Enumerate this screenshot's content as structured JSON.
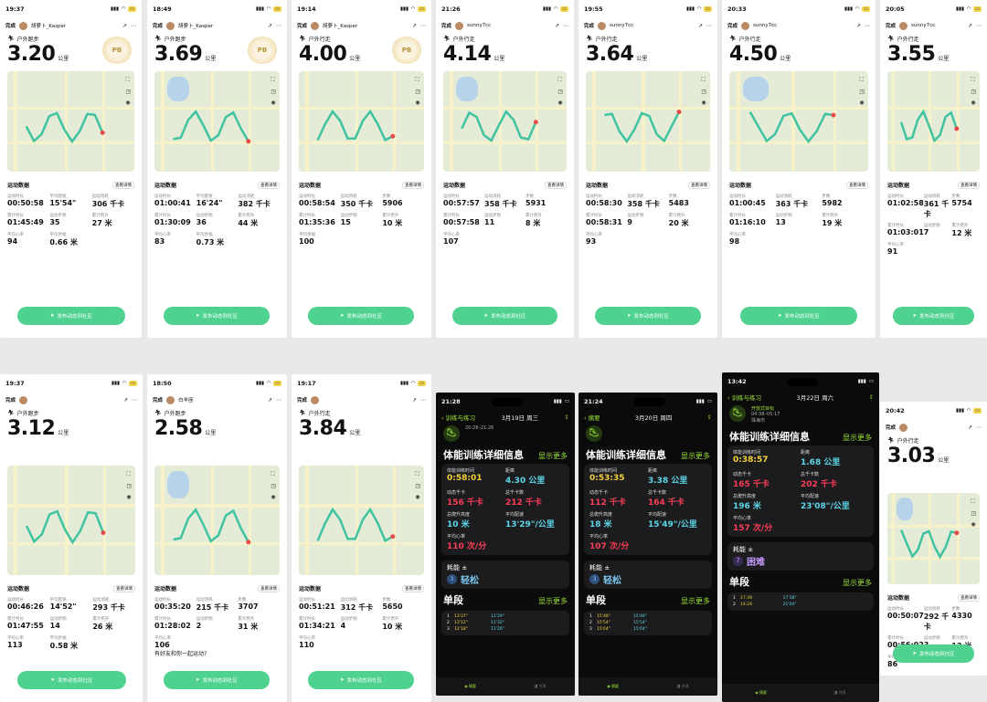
{
  "common": {
    "done_label": "完成",
    "post_label": "发布动态到社区",
    "data_title": "运动数据",
    "detail_label": "查看详情"
  },
  "top": [
    {
      "time": "19:37",
      "type": "户外跑步",
      "user": "胡萝卜_Kasper",
      "dist": "3.20",
      "unit": "公里",
      "badge": "PB",
      "stats": [
        [
          "运动时长",
          "00:50:58"
        ],
        [
          "平均配速",
          "15'54\""
        ],
        [
          "运动消耗",
          "306 千卡"
        ],
        [
          "累计时长",
          "01:45:49"
        ],
        [
          "运动步频",
          "35"
        ],
        [
          "累计爬升",
          "27 米"
        ],
        [
          "平均心率",
          "94"
        ],
        [
          "平均步幅",
          "0.66 米"
        ]
      ]
    },
    {
      "time": "18:49",
      "type": "户外跑步",
      "user": "胡萝卜_Kasper",
      "dist": "3.69",
      "unit": "公里",
      "badge": "PB",
      "stats": [
        [
          "运动时长",
          "01:00:41"
        ],
        [
          "平均配速",
          "16'24\""
        ],
        [
          "运动消耗",
          "382 千卡"
        ],
        [
          "累计时长",
          "01:30:09"
        ],
        [
          "运动步频",
          "36"
        ],
        [
          "累计爬升",
          "44 米"
        ],
        [
          "平均心率",
          "83"
        ],
        [
          "平均步幅",
          "0.73 米"
        ]
      ]
    },
    {
      "time": "19:14",
      "type": "户外行走",
      "user": "胡萝卜_Kasper",
      "dist": "4.00",
      "unit": "公里",
      "badge": "PB",
      "stats": [
        [
          "运动时长",
          "00:58:54"
        ],
        [
          "运动消耗",
          "350 千卡"
        ],
        [
          "步数",
          "5906"
        ],
        [
          "累计时长",
          "01:35:36"
        ],
        [
          "运动步频",
          "15"
        ],
        [
          "累计爬升",
          "10 米"
        ],
        [
          "平均步幅",
          "100"
        ]
      ]
    },
    {
      "time": "21:26",
      "type": "户外行走",
      "user": "sunny7cc",
      "dist": "4.14",
      "unit": "公里",
      "badge": "",
      "stats": [
        [
          "运动时长",
          "00:57:57"
        ],
        [
          "运动消耗",
          "358 千卡"
        ],
        [
          "步数",
          "5931"
        ],
        [
          "累计时长",
          "00:57:58"
        ],
        [
          "运动步频",
          "11"
        ],
        [
          "累计爬升",
          "8 米"
        ],
        [
          "平均心率",
          "107"
        ]
      ]
    },
    {
      "time": "19:55",
      "type": "户外行走",
      "user": "sunny7cc",
      "dist": "3.64",
      "unit": "公里",
      "badge": "",
      "stats": [
        [
          "运动时长",
          "00:58:30"
        ],
        [
          "运动消耗",
          "358 千卡"
        ],
        [
          "步数",
          "5483"
        ],
        [
          "累计时长",
          "00:58:31"
        ],
        [
          "运动步频",
          "9"
        ],
        [
          "累计爬升",
          "20 米"
        ],
        [
          "平均心率",
          "93"
        ]
      ]
    },
    {
      "time": "20:33",
      "type": "户外行走",
      "user": "sunny7cc",
      "dist": "4.50",
      "unit": "公里",
      "badge": "",
      "stats": [
        [
          "运动时长",
          "01:00:45"
        ],
        [
          "运动消耗",
          "363 千卡"
        ],
        [
          "步数",
          "5982"
        ],
        [
          "累计时长",
          "01:16:10"
        ],
        [
          "运动步频",
          "13"
        ],
        [
          "累计爬升",
          "19 米"
        ],
        [
          "平均心率",
          "98"
        ]
      ]
    },
    {
      "time": "20:05",
      "type": "户外行走",
      "user": "sunny7cc",
      "dist": "3.55",
      "unit": "公里",
      "badge": "",
      "stats": [
        [
          "运动时长",
          "01:02:58"
        ],
        [
          "运动消耗",
          "361 千卡"
        ],
        [
          "步数",
          "5754"
        ],
        [
          "累计时长",
          "01:03:01"
        ],
        [
          "运动步频",
          "7"
        ],
        [
          "累计爬升",
          "12 米"
        ],
        [
          "平均心率",
          "91"
        ]
      ]
    }
  ],
  "bottom_light": [
    {
      "time": "19:37",
      "type": "户外跑步",
      "user": "",
      "dist": "3.12",
      "unit": "公里",
      "stats": [
        [
          "运动时长",
          "00:46:26"
        ],
        [
          "平均配速",
          "14'52\""
        ],
        [
          "运动消耗",
          "293 千卡"
        ],
        [
          "累计时长",
          "01:47:55"
        ],
        [
          "运动步频",
          "14"
        ],
        [
          "累计爬升",
          "26 米"
        ],
        [
          "平均心率",
          "113"
        ],
        [
          "平均步幅",
          "0.58 米"
        ]
      ]
    },
    {
      "time": "18:50",
      "type": "户外跑步",
      "user": "白羊座",
      "dist": "2.58",
      "unit": "公里",
      "stats": [
        [
          "运动时长",
          "00:35:20"
        ],
        [
          "运动消耗",
          "215 千卡"
        ],
        [
          "步数",
          "3707"
        ],
        [
          "累计时长",
          "01:28:02"
        ],
        [
          "运动步频",
          "2"
        ],
        [
          "累计爬升",
          "31 米"
        ],
        [
          "平均心率",
          "106"
        ]
      ],
      "prompt": "有好友和你一起运动?"
    },
    {
      "time": "19:17",
      "type": "户外行走",
      "user": "",
      "dist": "3.84",
      "unit": "公里",
      "stats": [
        [
          "运动时长",
          "00:51:21"
        ],
        [
          "运动消耗",
          "312 千卡"
        ],
        [
          "步数",
          "5650"
        ],
        [
          "累计时长",
          "01:34:21"
        ],
        [
          "运动步频",
          "4"
        ],
        [
          "累计爬升",
          "10 米"
        ],
        [
          "平均心率",
          "110"
        ]
      ]
    }
  ],
  "dark": [
    {
      "time": "21:28",
      "back": "训练与练习",
      "date": "3月19日 周三",
      "time_range": "20:28–21:26",
      "section": "体能训练详细信息",
      "more": "显示更多",
      "cells": [
        [
          "体能训练时间",
          "0:58:01",
          "c-yellow"
        ],
        [
          "距离",
          "4.30 公里",
          "c-cyan"
        ],
        [
          "动态千卡",
          "156 千卡",
          "c-red"
        ],
        [
          "总千卡数",
          "212 千卡",
          "c-red"
        ],
        [
          "总爬升高度",
          "10 米",
          "c-cyan"
        ],
        [
          "平均配速",
          "13'29\"/公里",
          "c-cyan"
        ],
        [
          "平均心率",
          "110 次/分",
          "c-red"
        ]
      ],
      "effort_label": "耗能",
      "effort_num": "3",
      "effort_word": "轻松",
      "splits_title": "单段",
      "splits": [
        [
          "1",
          "13'37\"",
          "11'29\""
        ],
        [
          "2",
          "13'12\"",
          "11'32\""
        ],
        [
          "3",
          "12'18\"",
          "11'26\""
        ]
      ],
      "tabs": [
        "摘要",
        "共享"
      ]
    },
    {
      "time": "21:24",
      "back": "摘要",
      "date": "3月20日 周四",
      "time_range": "",
      "section": "体能训练详细信息",
      "more": "显示更多",
      "cells": [
        [
          "体能训练时间",
          "0:53:35",
          "c-yellow"
        ],
        [
          "距离",
          "3.38 公里",
          "c-cyan"
        ],
        [
          "动态千卡",
          "112 千卡",
          "c-red"
        ],
        [
          "总千卡数",
          "164 千卡",
          "c-red"
        ],
        [
          "总爬升高度",
          "18 米",
          "c-cyan"
        ],
        [
          "平均配速",
          "15'49\"/公里",
          "c-cyan"
        ],
        [
          "平均心率",
          "107 次/分",
          "c-red"
        ]
      ],
      "effort_label": "耗能",
      "effort_num": "3",
      "effort_word": "轻松",
      "splits_title": "单段",
      "splits": [
        [
          "1",
          "15'48\"",
          "15'48\""
        ],
        [
          "2",
          "15'54\"",
          "15'54\""
        ],
        [
          "3",
          "15'04\"",
          "15'04\""
        ]
      ],
      "tabs": [
        "摘要",
        "共享"
      ]
    },
    {
      "time": "13:42",
      "back": "训练与练习",
      "date": "3月22日 周六",
      "time_range": "04:38–05:17",
      "section": "体能训练详细信息",
      "more": "显示更多",
      "activity": "开放式目标",
      "place": "珠海市",
      "cells": [
        [
          "体能训练时间",
          "0:38:57",
          "c-yellow"
        ],
        [
          "距离",
          "1.68 公里",
          "c-cyan"
        ],
        [
          "动态千卡",
          "165 千卡",
          "c-red"
        ],
        [
          "总千卡数",
          "202 千卡",
          "c-red"
        ],
        [
          "总爬升高度",
          "196 米",
          "c-cyan"
        ],
        [
          "平均配速",
          "23'08\"/公里",
          "c-cyan"
        ],
        [
          "平均心率",
          "157 次/分",
          "c-red"
        ]
      ],
      "effort_label": "耗能",
      "effort_num": "7",
      "effort_word": "困难",
      "splits_title": "单段",
      "splits": [
        [
          "1",
          "17:39",
          "17'38\""
        ],
        [
          "2",
          "14:24",
          "21'04\""
        ]
      ],
      "tabs": [
        "摘要",
        "共享"
      ]
    }
  ],
  "last": {
    "time": "20:42",
    "type": "户外行走",
    "dist": "3.03",
    "unit": "公里",
    "stats": [
      [
        "运动时长",
        "00:50:07"
      ],
      [
        "运动消耗",
        "292 千卡"
      ],
      [
        "步数",
        "4330"
      ],
      [
        "累计时长",
        "00:56:02"
      ],
      [
        "运动步频",
        "3"
      ],
      [
        "累计爬升",
        "12 米"
      ],
      [
        "平均心率",
        "86"
      ]
    ]
  }
}
